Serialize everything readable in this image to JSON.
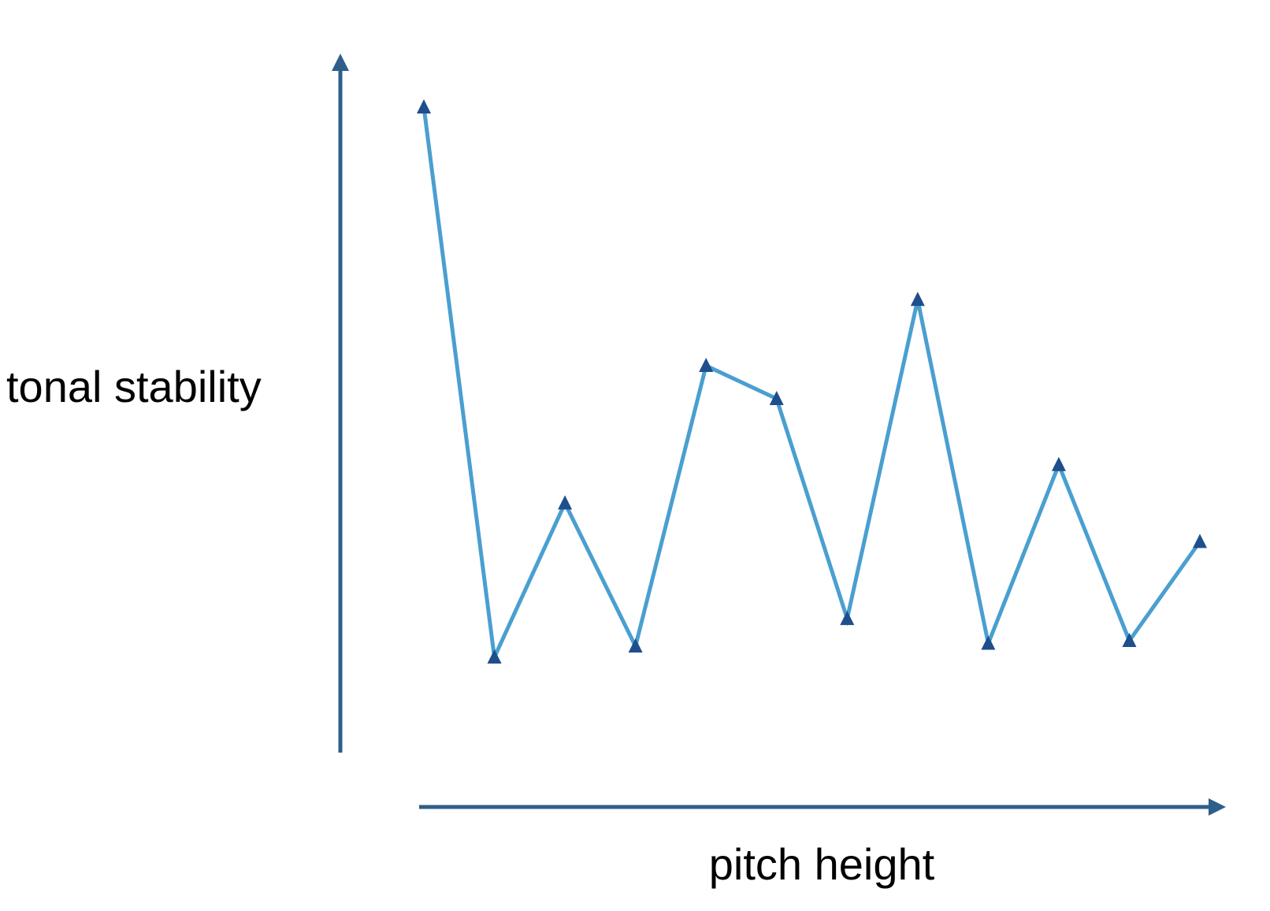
{
  "chart_data": {
    "type": "line",
    "title": "",
    "xlabel": "pitch height",
    "ylabel": "tonal stability",
    "x": [
      1,
      2,
      3,
      4,
      5,
      6,
      7,
      8,
      9,
      10,
      11,
      12
    ],
    "series": [
      {
        "values": [
          10.0,
          0.0,
          2.8,
          0.2,
          5.3,
          4.7,
          0.7,
          6.5,
          0.25,
          3.5,
          0.3,
          2.1
        ]
      }
    ],
    "ylim": [
      0,
      10
    ],
    "grid": false,
    "colors": {
      "line": "#4a9fd0",
      "marker": "#1f4e8c",
      "axis": "#2d5f8a"
    },
    "marker": "triangle"
  }
}
